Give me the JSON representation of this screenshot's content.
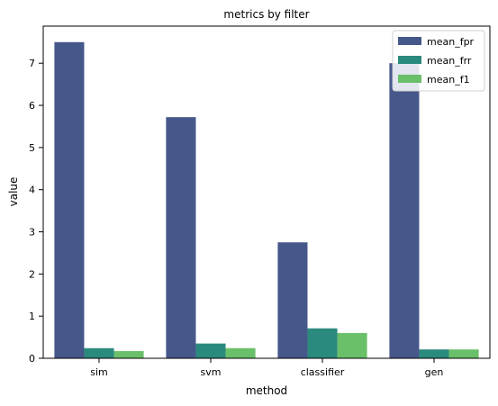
{
  "chart_data": {
    "type": "bar",
    "title": "metrics by filter",
    "xlabel": "method",
    "ylabel": "value",
    "categories": [
      "sim",
      "svm",
      "classifier",
      "gen"
    ],
    "series": [
      {
        "name": "mean_fpr",
        "values": [
          7.5,
          5.72,
          2.75,
          7.0
        ],
        "color": "#46578a"
      },
      {
        "name": "mean_frr",
        "values": [
          0.24,
          0.35,
          0.71,
          0.21
        ],
        "color": "#2b8a7e"
      },
      {
        "name": "mean_f1",
        "values": [
          0.17,
          0.24,
          0.6,
          0.21
        ],
        "color": "#6abf69"
      }
    ],
    "ylim": [
      0,
      7.88
    ],
    "yticks": [
      0,
      1,
      2,
      3,
      4,
      5,
      6,
      7
    ],
    "grid": false,
    "legend_position": "top-right"
  }
}
